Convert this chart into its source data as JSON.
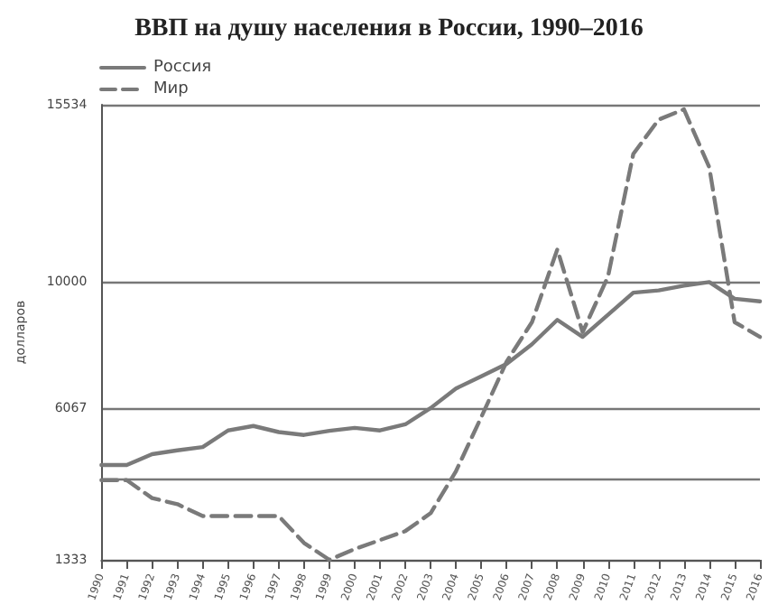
{
  "chart_data": {
    "type": "line",
    "title": "ВВП на душу населения в России, 1990–2016",
    "ylabel": "долларов",
    "categories": [
      "1990",
      "1991",
      "1992",
      "1993",
      "1994",
      "1995",
      "1996",
      "1997",
      "1998",
      "1999",
      "2000",
      "2001",
      "2002",
      "2003",
      "2004",
      "2005",
      "2006",
      "2007",
      "2008",
      "2009",
      "2010",
      "2011",
      "2012",
      "2013",
      "2014",
      "2015",
      "2016"
    ],
    "series": [
      {
        "name": "Россия",
        "color": "#7a7a7a",
        "line_style": "solid",
        "values": [
          4290,
          4290,
          4630,
          4750,
          4850,
          5370,
          5510,
          5320,
          5230,
          5360,
          5450,
          5370,
          5560,
          6070,
          6680,
          7060,
          7450,
          8060,
          8820,
          8290,
          8980,
          9670,
          9740,
          9890,
          10000,
          9480,
          9400
        ]
      },
      {
        "name": "Мир",
        "color": "#7a7a7a",
        "line_style": "dashed",
        "values": [
          3820,
          3820,
          3260,
          3070,
          2700,
          2700,
          2700,
          2700,
          1860,
          1333,
          1670,
          1950,
          2230,
          2790,
          4100,
          5790,
          7520,
          8750,
          11020,
          8440,
          10170,
          14000,
          15070,
          15390,
          13580,
          8750,
          8290
        ]
      }
    ],
    "ylim": [
      1333,
      15534
    ],
    "yticks": [
      1333,
      {
        "value": 3860,
        "label": null
      },
      6067,
      10000,
      15534
    ],
    "grid": "y",
    "legend": "top left",
    "marker": "none"
  }
}
